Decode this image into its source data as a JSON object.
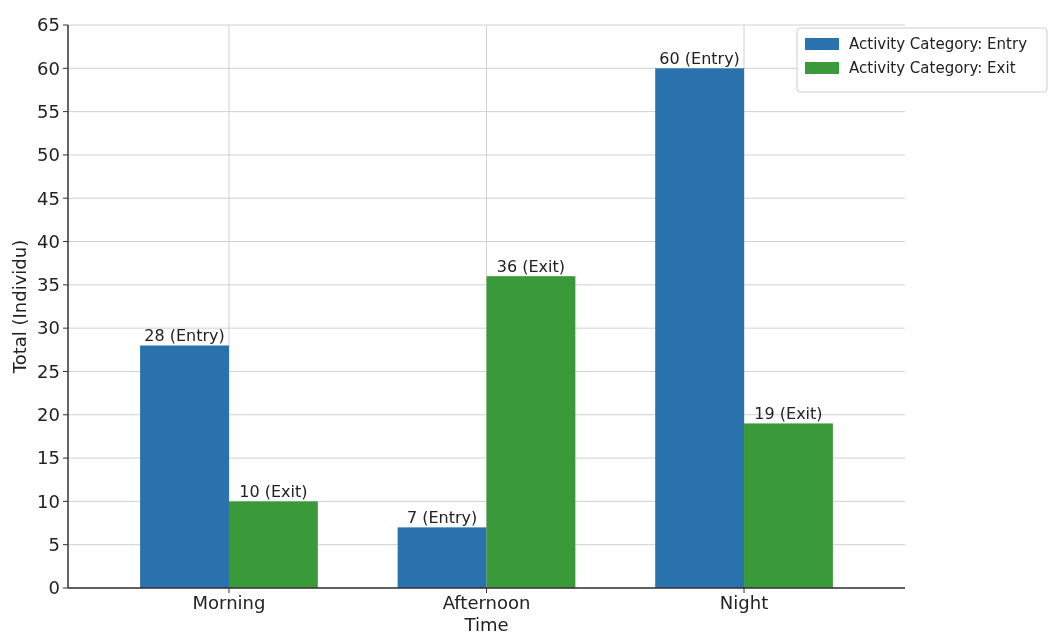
{
  "chart_data": {
    "type": "bar",
    "xlabel": "Time",
    "ylabel": "Total (Individu)",
    "categories": [
      "Morning",
      "Afternoon",
      "Night"
    ],
    "series": [
      {
        "name": "Activity Category: Entry",
        "color": "#2a72ad",
        "values": [
          28,
          7,
          60
        ],
        "value_labels": [
          "28 (Entry)",
          "7 (Entry)",
          "60 (Entry)"
        ]
      },
      {
        "name": "Activity Category: Exit",
        "color": "#3a9a3a",
        "values": [
          10,
          36,
          19
        ],
        "value_labels": [
          "10 (Exit)",
          "36 (Exit)",
          "19 (Exit)"
        ]
      }
    ],
    "ylim": [
      0,
      65
    ],
    "yticks": [
      0,
      5,
      10,
      15,
      20,
      25,
      30,
      35,
      40,
      45,
      50,
      55,
      60,
      65
    ],
    "grid": true,
    "legend": "top right"
  }
}
